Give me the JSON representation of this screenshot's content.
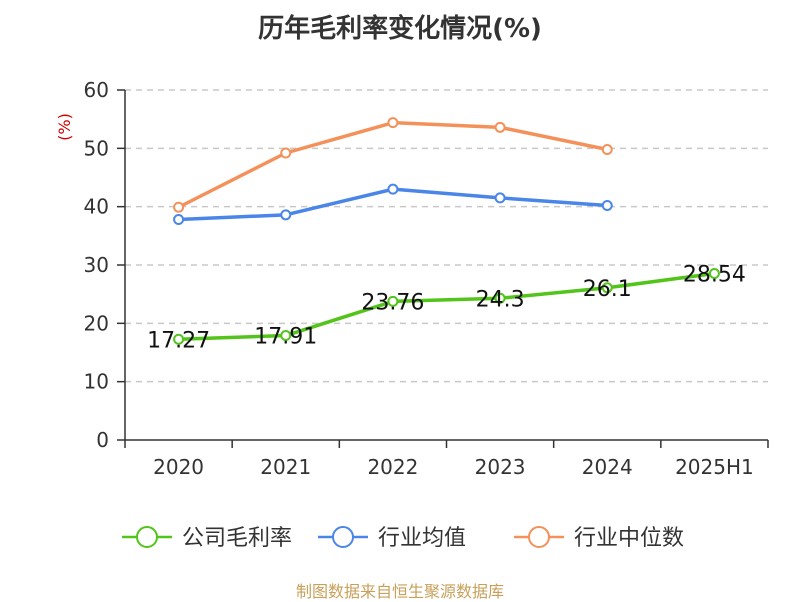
{
  "chart_data": {
    "type": "line",
    "title": "历年毛利率变化情况(%)",
    "ylabel": "(%)",
    "ylim": [
      0,
      60
    ],
    "yticks": [
      0,
      10,
      20,
      30,
      40,
      50,
      60
    ],
    "categories": [
      "2020",
      "2021",
      "2022",
      "2023",
      "2024",
      "2025H1"
    ],
    "grid": true,
    "legend": "bottom",
    "series": [
      {
        "name": "公司毛利率",
        "color": "#52c41a",
        "values": [
          17.27,
          17.91,
          23.76,
          24.3,
          26.1,
          28.54
        ],
        "labels": [
          "17.27",
          "17.91",
          "23.76",
          "24.3",
          "26.1",
          "28.54"
        ]
      },
      {
        "name": "行业均值",
        "color": "#4a86e8",
        "values": [
          37.8,
          38.6,
          43.0,
          41.5,
          40.2,
          null
        ]
      },
      {
        "name": "行业中位数",
        "color": "#f4915a",
        "values": [
          39.9,
          49.2,
          54.4,
          53.6,
          49.8,
          null
        ]
      }
    ]
  },
  "source": "制图数据来自恒生聚源数据库"
}
